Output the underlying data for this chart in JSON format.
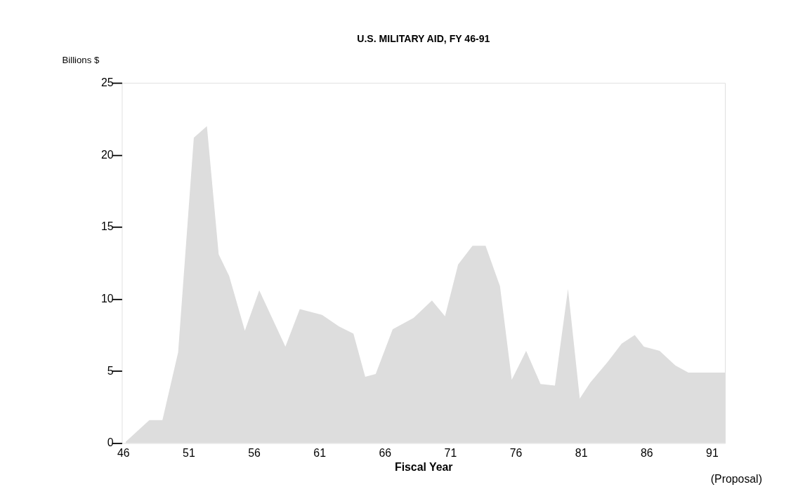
{
  "chart_data": {
    "type": "area",
    "title": "U.S. MILITARY AID, FY 46-91",
    "xlabel": "Fiscal Year",
    "ylabel": "Billions $",
    "x": [
      46.2,
      48.0,
      49.0,
      50.2,
      51.4,
      52.4,
      53.3,
      54.1,
      55.3,
      56.4,
      58.4,
      59.5,
      61.2,
      62.5,
      63.6,
      64.5,
      65.3,
      66.6,
      68.2,
      69.6,
      70.6,
      71.6,
      72.7,
      73.7,
      74.8,
      75.7,
      76.8,
      77.9,
      79.0,
      80.0,
      80.9,
      81.7,
      83.0,
      84.1,
      85.1,
      85.8,
      87.0,
      88.2,
      89.2,
      92.0
    ],
    "values": [
      0.1,
      1.6,
      1.6,
      6.3,
      21.2,
      22.0,
      13.1,
      11.6,
      7.8,
      10.6,
      6.7,
      9.3,
      8.9,
      8.1,
      7.6,
      4.6,
      4.8,
      7.9,
      8.7,
      9.9,
      8.8,
      12.4,
      13.7,
      13.7,
      10.9,
      4.4,
      6.4,
      4.1,
      4.0,
      10.7,
      3.1,
      4.2,
      5.6,
      6.9,
      7.5,
      6.7,
      6.4,
      5.4,
      4.9,
      4.9
    ],
    "color": "#dddddd",
    "xlim": [
      45.9,
      92
    ],
    "xticks": [
      46,
      51,
      56,
      61,
      66,
      71,
      76,
      81,
      86,
      91
    ],
    "ylim": [
      0,
      25
    ],
    "yticks": [
      0,
      5,
      10,
      15,
      20,
      25
    ],
    "annotations": [
      "(Proposal)"
    ]
  }
}
